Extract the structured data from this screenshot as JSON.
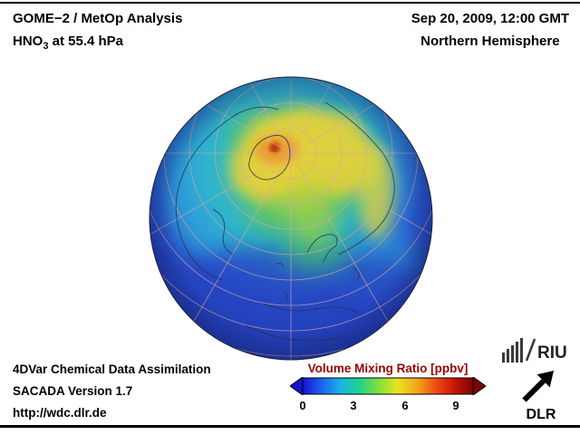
{
  "header": {
    "left": {
      "line1": "GOME−2 / MetOp Analysis",
      "line2_prefix": "HNO",
      "line2_sub": "3",
      "line2_suffix": " at 55.4 hPa"
    },
    "right": {
      "line1": "Sep 20, 2009, 12:00 GMT",
      "line2": "Northern Hemisphere"
    }
  },
  "footer": {
    "line1": "4DVar Chemical Data Assimilation",
    "line2": "SACADA Version 1.7",
    "line3": "http://wdc.dlr.de"
  },
  "logos": {
    "riu": "RIU",
    "dlr": "DLR"
  },
  "chart_data": {
    "type": "heatmap",
    "title": "GOME−2 / MetOp Analysis — HNO3 at 55.4 hPa",
    "datetime": "Sep 20, 2009, 12:00 GMT",
    "region": "Northern Hemisphere",
    "projection": "orthographic globe centered near the North Pole",
    "colorbar": {
      "label": "Volume Mixing Ratio [ppbv]",
      "label_color": "#990000",
      "ticks": [
        0,
        3,
        6,
        9
      ],
      "range": [
        0,
        10
      ],
      "colors": [
        "#1515d0",
        "#1b63f0",
        "#17b4e8",
        "#1ed489",
        "#7ee03c",
        "#e8e420",
        "#f5a81c",
        "#f04f10",
        "#cc1408",
        "#7a0403"
      ]
    },
    "field_estimate_ppbv": [
      {
        "region": "localized maximum near pole (Greenland side, orange-red spot)",
        "value": 8.5
      },
      {
        "region": "polar cap ring 65-85N (yellow-green)",
        "value": 6.0
      },
      {
        "region": "mid-latitudes 45-60N (cyan-green)",
        "value": 3.0
      },
      {
        "region": "low latitudes near globe rim (deep blue)",
        "value": 1.5
      }
    ],
    "grid": "pink graticule lines every 30 deg longitude and ~10 deg latitude",
    "legend_position": "bottom center-right, horizontal colorbar with arrow ends"
  }
}
